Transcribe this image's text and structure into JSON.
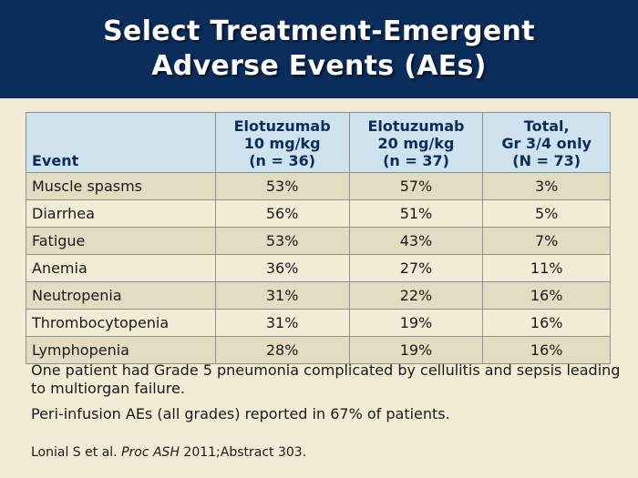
{
  "header": {
    "title_line1": "Select Treatment-Emergent",
    "title_line2": "Adverse Events (AEs)"
  },
  "table": {
    "headers": [
      {
        "lines": [
          "Event"
        ]
      },
      {
        "lines": [
          "Elotuzumab",
          "10 mg/kg",
          "(n = 36)"
        ]
      },
      {
        "lines": [
          "Elotuzumab",
          "20 mg/kg",
          "(n = 37)"
        ]
      },
      {
        "lines": [
          "Total,",
          "Gr 3/4 only",
          "(N = 73)"
        ]
      }
    ],
    "rows": [
      [
        "Muscle spasms",
        "53%",
        "57%",
        "3%"
      ],
      [
        "Diarrhea",
        "56%",
        "51%",
        "5%"
      ],
      [
        "Fatigue",
        "53%",
        "43%",
        "7%"
      ],
      [
        "Anemia",
        "36%",
        "27%",
        "11%"
      ],
      [
        "Neutropenia",
        "31%",
        "22%",
        "16%"
      ],
      [
        "Thrombocytopenia",
        "31%",
        "19%",
        "16%"
      ],
      [
        "Lymphopenia",
        "28%",
        "19%",
        "16%"
      ]
    ]
  },
  "notes": [
    "One patient had Grade 5 pneumonia complicated by cellulitis and sepsis leading to multiorgan failure.",
    "Peri-infusion AEs (all grades) reported in 67% of patients."
  ],
  "reference": {
    "authors": "Lonial S et al.",
    "journal": "Proc ASH",
    "citation": "2011;Abstract 303."
  },
  "colors": {
    "header_bg": "#0b2d5b",
    "slide_bg": "#f2ebd6",
    "table_header_bg": "#cfe3ef",
    "row_alt_bg": "#e4dcc2"
  }
}
